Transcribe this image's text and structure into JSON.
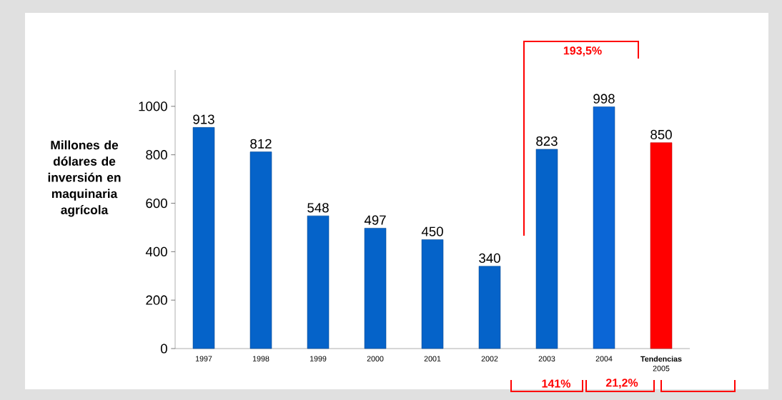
{
  "chart_data": {
    "type": "bar",
    "ylabel": "Millones de dólares de inversión en maquinaria agrícola",
    "categories": [
      "1997",
      "1998",
      "1999",
      "2000",
      "2001",
      "2002",
      "2003",
      "2004",
      "**Tendencias** 2005"
    ],
    "values": [
      913,
      812,
      548,
      497,
      450,
      340,
      823,
      998,
      850
    ],
    "colors": [
      "#0563c9",
      "#0563c9",
      "#0563c9",
      "#0563c9",
      "#0563c9",
      "#0563c9",
      "#0563c9",
      "#0b66d6",
      "#ff0000"
    ],
    "ylim": [
      0,
      1150
    ],
    "yticks": [
      0,
      200,
      400,
      600,
      800,
      1000
    ],
    "data_labels": true,
    "annotations": [
      "193,5%",
      "141%",
      "21,2%"
    ]
  }
}
